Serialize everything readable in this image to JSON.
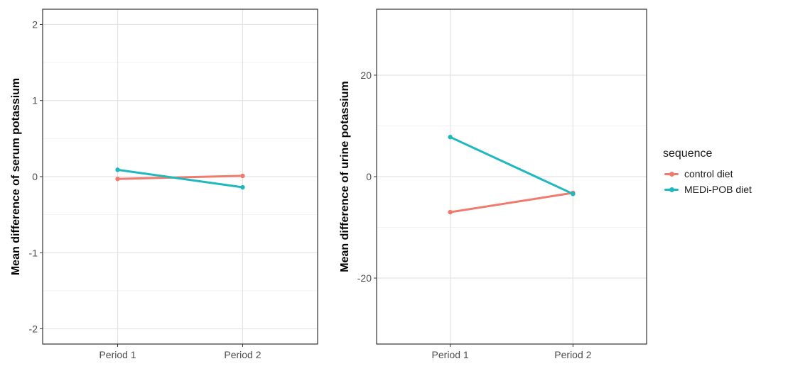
{
  "chart_data": [
    {
      "type": "line",
      "title": "",
      "xlabel": "",
      "ylabel": "Mean difference of serum potassium",
      "categories": [
        "Period 1",
        "Period 2"
      ],
      "ylim": [
        -2.2,
        2.2
      ],
      "yticks": [
        -2,
        -1,
        0,
        1,
        2
      ],
      "yticklabels": [
        "-2",
        "-1",
        "0",
        "1",
        "2"
      ],
      "grid": true,
      "series": [
        {
          "name": "control diet",
          "values": [
            -0.03,
            0.01
          ],
          "color": "#F07A6E"
        },
        {
          "name": "MEDi-POB diet",
          "values": [
            0.09,
            -0.14
          ],
          "color": "#1FB8BE"
        }
      ]
    },
    {
      "type": "line",
      "title": "",
      "xlabel": "",
      "ylabel": "Mean difference of urine potassium",
      "categories": [
        "Period 1",
        "Period 2"
      ],
      "ylim": [
        -33,
        33
      ],
      "yticks": [
        -20,
        0,
        20
      ],
      "yticklabels": [
        "-20",
        "0",
        "20"
      ],
      "grid": true,
      "series": [
        {
          "name": "control diet",
          "values": [
            -7.0,
            -3.2
          ],
          "color": "#F07A6E"
        },
        {
          "name": "MEDi-POB diet",
          "values": [
            7.8,
            -3.4
          ],
          "color": "#1FB8BE"
        }
      ]
    }
  ],
  "legend": {
    "title": "sequence",
    "placement": "right",
    "items": [
      {
        "label": "control diet",
        "color": "#F07A6E"
      },
      {
        "label": "MEDi-POB diet",
        "color": "#1FB8BE"
      }
    ]
  }
}
